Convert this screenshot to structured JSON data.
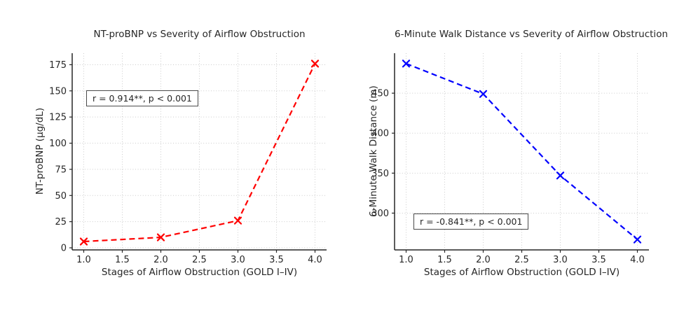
{
  "figure": {
    "background": "#ffffff",
    "grid_color": "#cccccc",
    "axis_color": "#262626",
    "text_color": "#262626"
  },
  "chart_data": [
    {
      "type": "line",
      "title": "NT-proBNP vs Severity of Airflow Obstruction",
      "xlabel": "Stages of Airflow Obstruction (GOLD I–IV)",
      "ylabel": "NT-proBNP (µg/dL)",
      "x": [
        1.0,
        2.0,
        3.0,
        4.0
      ],
      "y": [
        6,
        10,
        26,
        176
      ],
      "xlim": [
        0.85,
        4.15
      ],
      "ylim": [
        -2,
        186
      ],
      "xticks": [
        1.0,
        1.5,
        2.0,
        2.5,
        3.0,
        3.5,
        4.0
      ],
      "xtick_labels": [
        "1.0",
        "1.5",
        "2.0",
        "2.5",
        "3.0",
        "3.5",
        "4.0"
      ],
      "yticks": [
        0,
        25,
        50,
        75,
        100,
        125,
        150,
        175
      ],
      "ytick_labels": [
        "0",
        "25",
        "50",
        "75",
        "100",
        "125",
        "150",
        "175"
      ],
      "line_color": "#ff0000",
      "line_style": "dashed",
      "marker": "x",
      "grid": true,
      "legend": "none",
      "annotation": "r = 0.914**, p < 0.001"
    },
    {
      "type": "line",
      "title": "6-Minute Walk Distance vs Severity of Airflow Obstruction",
      "xlabel": "Stages of Airflow Obstruction (GOLD I–IV)",
      "ylabel": "6-Minute Walk Distance (m)",
      "x": [
        1.0,
        2.0,
        3.0,
        4.0
      ],
      "y": [
        487,
        449,
        347,
        267
      ],
      "xlim": [
        0.85,
        4.15
      ],
      "ylim": [
        254,
        500
      ],
      "xticks": [
        1.0,
        1.5,
        2.0,
        2.5,
        3.0,
        3.5,
        4.0
      ],
      "xtick_labels": [
        "1.0",
        "1.5",
        "2.0",
        "2.5",
        "3.0",
        "3.5",
        "4.0"
      ],
      "yticks": [
        300,
        350,
        400,
        450
      ],
      "ytick_labels": [
        "300",
        "350",
        "400",
        "450"
      ],
      "line_color": "#0000ff",
      "line_style": "dashed",
      "marker": "x",
      "grid": true,
      "legend": "none",
      "annotation": "r = -0.841**, p < 0.001"
    }
  ]
}
